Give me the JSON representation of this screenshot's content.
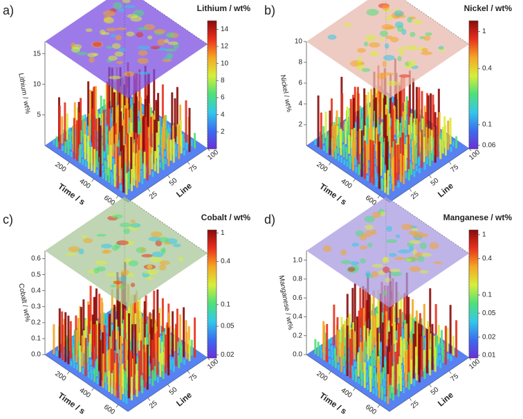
{
  "chart_data": [
    {
      "type": "surface",
      "panel_label": "a)",
      "title": "Lithium / wt%",
      "zlabel": "Lithium / wt%",
      "xlabel": "Time / s",
      "ylabel": "Line",
      "xlim": [
        0,
        680
      ],
      "xticks": [
        200,
        400,
        600
      ],
      "ylim": [
        0,
        100
      ],
      "yticks": [
        25,
        50,
        75,
        100
      ],
      "zlim": [
        0,
        17
      ],
      "zticks": [
        5,
        10,
        15
      ],
      "log_colorbar": false,
      "clim": [
        0,
        15
      ],
      "cticks": [
        2,
        4,
        6,
        8,
        10,
        12,
        14
      ],
      "plane_color": "#7b4fe0",
      "colors": [
        "#6a2fd8",
        "#3b6cf0",
        "#33c8e8",
        "#4fe07a",
        "#d8ee3a",
        "#f5a623",
        "#e8301c",
        "#8a0b0b"
      ]
    },
    {
      "type": "surface",
      "panel_label": "b)",
      "title": "Nickel / wt%",
      "zlabel": "Nickel / wt%",
      "xlabel": "Time / s",
      "ylabel": "Line",
      "xlim": [
        0,
        680
      ],
      "xticks": [
        200,
        400,
        600
      ],
      "ylim": [
        0,
        100
      ],
      "yticks": [
        25,
        50,
        75,
        100
      ],
      "zlim": [
        0,
        10
      ],
      "zticks": [
        2,
        4,
        6,
        8,
        10
      ],
      "log_colorbar": true,
      "clim": [
        0.055,
        1.3
      ],
      "cticks": [
        0.06,
        0.1,
        0.4,
        1
      ],
      "plane_color": "#e7b9ad",
      "colors": [
        "#6a2fd8",
        "#3b6cf0",
        "#33c8e8",
        "#4fe07a",
        "#d8ee3a",
        "#f5a623",
        "#e8301c",
        "#8a0b0b"
      ]
    },
    {
      "type": "surface",
      "panel_label": "c)",
      "title": "Cobalt / wt%",
      "zlabel": "Cobalt / wt%",
      "xlabel": "Time / s",
      "ylabel": "Line",
      "xlim": [
        0,
        680
      ],
      "xticks": [
        200,
        400,
        600
      ],
      "ylim": [
        0,
        100
      ],
      "yticks": [
        25,
        50,
        75,
        100
      ],
      "zlim": [
        0,
        0.65
      ],
      "zticks": [
        {
          "value": 0,
          "label": "0.0"
        },
        0.1,
        0.2,
        0.3,
        0.4,
        0.5,
        0.6
      ],
      "log_colorbar": true,
      "clim": [
        0.018,
        1.1
      ],
      "cticks": [
        0.02,
        0.05,
        0.1,
        0.4,
        1
      ],
      "plane_color": "#a9c79a",
      "colors": [
        "#6a2fd8",
        "#3b6cf0",
        "#33c8e8",
        "#4fe07a",
        "#d8ee3a",
        "#f5a623",
        "#e8301c",
        "#8a0b0b"
      ]
    },
    {
      "type": "surface",
      "panel_label": "d)",
      "title": "Manganese / wt%",
      "zlabel": "Manganese / wt%",
      "xlabel": "Time / s",
      "ylabel": "Line",
      "xlim": [
        0,
        680
      ],
      "xticks": [
        200,
        400,
        600
      ],
      "ylim": [
        0,
        100
      ],
      "yticks": [
        25,
        50,
        75,
        100
      ],
      "zlim": [
        0,
        1.1
      ],
      "zticks": [
        {
          "value": 0,
          "label": "0.0"
        },
        0.2,
        0.4,
        0.6,
        0.8,
        {
          "value": 1,
          "label": "1.0"
        }
      ],
      "log_colorbar": true,
      "clim": [
        0.009,
        1.2
      ],
      "cticks": [
        0.01,
        0.02,
        0.05,
        0.1,
        0.4,
        1
      ],
      "plane_color": "#a99be0",
      "colors": [
        "#6a2fd8",
        "#3b6cf0",
        "#33c8e8",
        "#4fe07a",
        "#d8ee3a",
        "#f5a623",
        "#e8301c",
        "#8a0b0b"
      ]
    }
  ]
}
